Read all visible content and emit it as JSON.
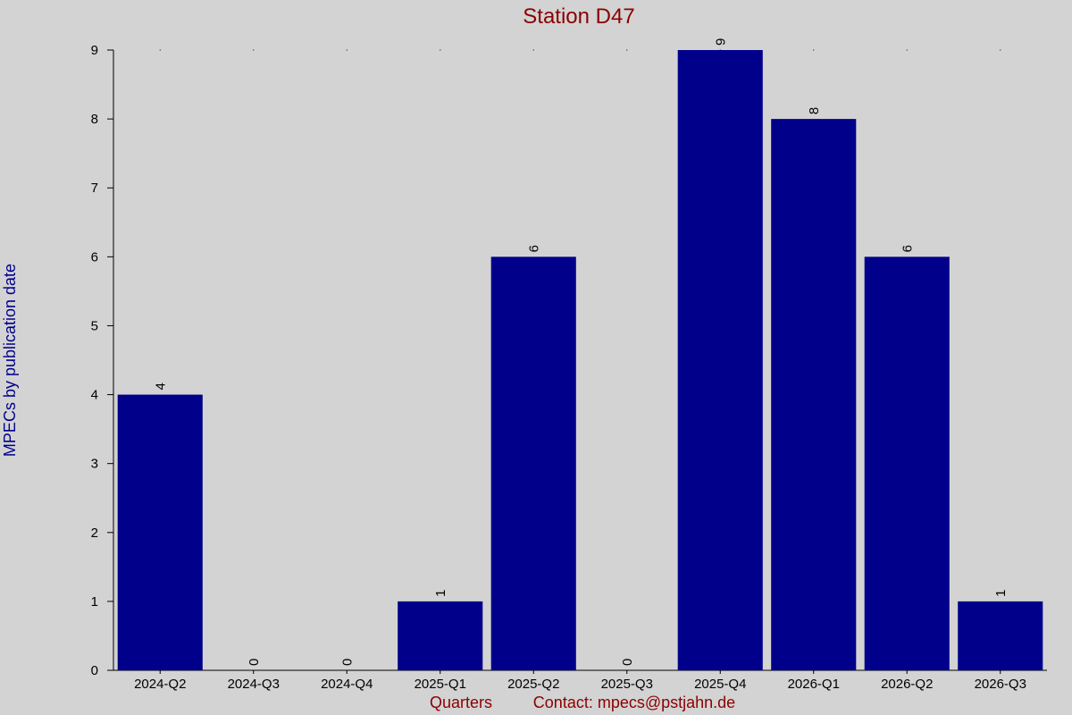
{
  "chart_data": {
    "type": "bar",
    "title": "Station D47",
    "x_label": "Quarters",
    "annotation": "Contact: mpecs@pstjahn.de",
    "y_label": "MPECs by publication date",
    "categories": [
      "2024-Q2",
      "2024-Q3",
      "2024-Q4",
      "2025-Q1",
      "2025-Q2",
      "2025-Q3",
      "2025-Q4",
      "2026-Q1",
      "2026-Q2",
      "2026-Q3"
    ],
    "values": [
      4,
      0,
      0,
      1,
      6,
      0,
      9,
      8,
      6,
      1
    ],
    "color": "#00008b",
    "ylim": [
      0,
      9
    ],
    "yticks": [
      0,
      1,
      2,
      3,
      4,
      5,
      6,
      7,
      8,
      9
    ],
    "grid": false
  }
}
